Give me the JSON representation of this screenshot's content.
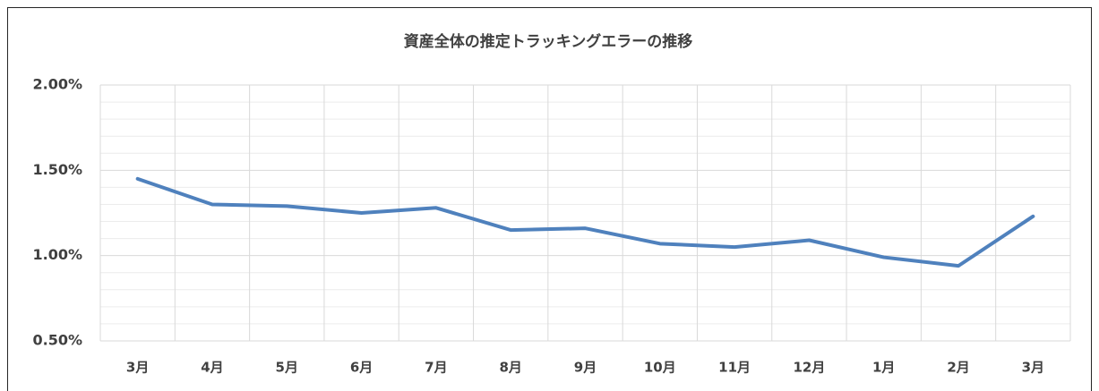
{
  "chart_data": {
    "type": "line",
    "title": "資産全体の推定トラッキングエラーの推移",
    "categories": [
      "3月",
      "4月",
      "5月",
      "6月",
      "7月",
      "8月",
      "9月",
      "10月",
      "11月",
      "12月",
      "1月",
      "2月",
      "3月"
    ],
    "series": [
      {
        "color": "#4f81bd",
        "values": [
          1.45,
          1.3,
          1.29,
          1.25,
          1.28,
          1.15,
          1.16,
          1.07,
          1.05,
          1.09,
          0.99,
          0.94,
          1.23
        ]
      }
    ],
    "ylim": [
      0.5,
      2.0
    ],
    "yticks": [
      {
        "value": 0.5,
        "label": "0.50%"
      },
      {
        "value": 1.0,
        "label": "1.00%"
      },
      {
        "value": 1.5,
        "label": "1.50%"
      },
      {
        "value": 2.0,
        "label": "2.00%"
      }
    ],
    "yminorticks": [
      0.6,
      0.7,
      0.8,
      0.9,
      1.1,
      1.2,
      1.3,
      1.4,
      1.6,
      1.7,
      1.8,
      1.9
    ],
    "grid": true
  }
}
